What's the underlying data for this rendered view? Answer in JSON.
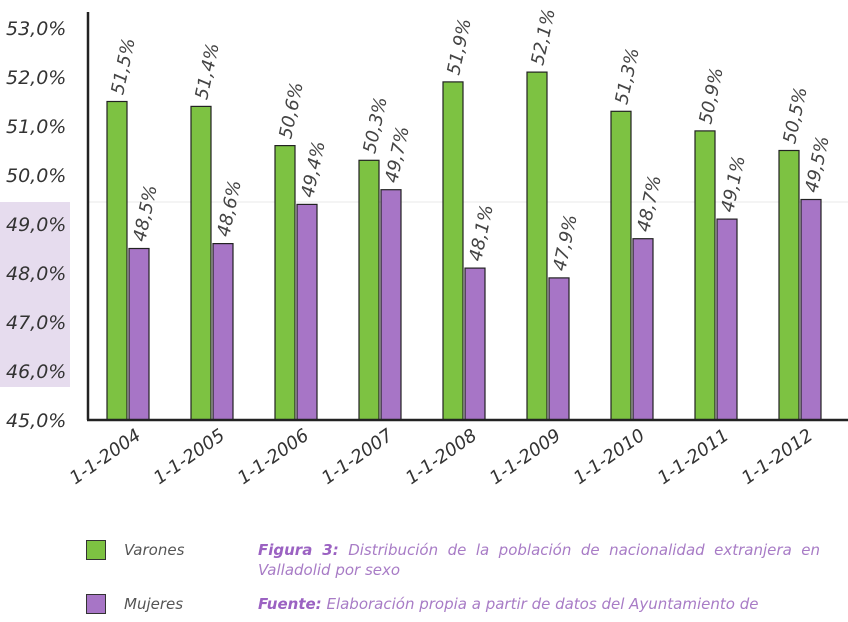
{
  "chart_data": {
    "type": "bar",
    "categories": [
      "1-1-2004",
      "1-1-2005",
      "1-1-2006",
      "1-1-2007",
      "1-1-2008",
      "1-1-2009",
      "1-1-2010",
      "1-1-2011",
      "1-1-2012"
    ],
    "series": [
      {
        "name": "Varones",
        "color": "#7dc242",
        "values": [
          51.5,
          51.4,
          50.6,
          50.3,
          51.9,
          52.1,
          51.3,
          50.9,
          50.5
        ],
        "labels": [
          "51,5%",
          "51,4%",
          "50,6%",
          "50,3%",
          "51,9%",
          "52,1%",
          "51,3%",
          "50,9%",
          "50,5%"
        ]
      },
      {
        "name": "Mujeres",
        "color": "#a775c6",
        "values": [
          48.5,
          48.6,
          49.4,
          49.7,
          48.1,
          47.9,
          48.7,
          49.1,
          49.5
        ],
        "labels": [
          "48,5%",
          "48,6%",
          "49,4%",
          "49,7%",
          "48,1%",
          "47,9%",
          "48,7%",
          "49,1%",
          "49,5%"
        ]
      }
    ],
    "yticks": [
      "45,0%",
      "46,0%",
      "47,0%",
      "48,0%",
      "49,0%",
      "50,0%",
      "51,0%",
      "52,0%",
      "53,0%"
    ],
    "ylim": [
      45,
      53
    ],
    "legend_position": "bottom-left"
  },
  "legend": {
    "varones": "Varones",
    "mujeres": "Mujeres",
    "varones_color": "#7dc242",
    "mujeres_color": "#a775c6"
  },
  "caption": {
    "figure_label": "Figura 3:",
    "figure_text": "Distribución de la población de nacionalidad extranjera en Valladolid por sexo",
    "source_label": "Fuente:",
    "source_text": "Elaboración propia a partir de datos del Ayuntamiento de"
  }
}
